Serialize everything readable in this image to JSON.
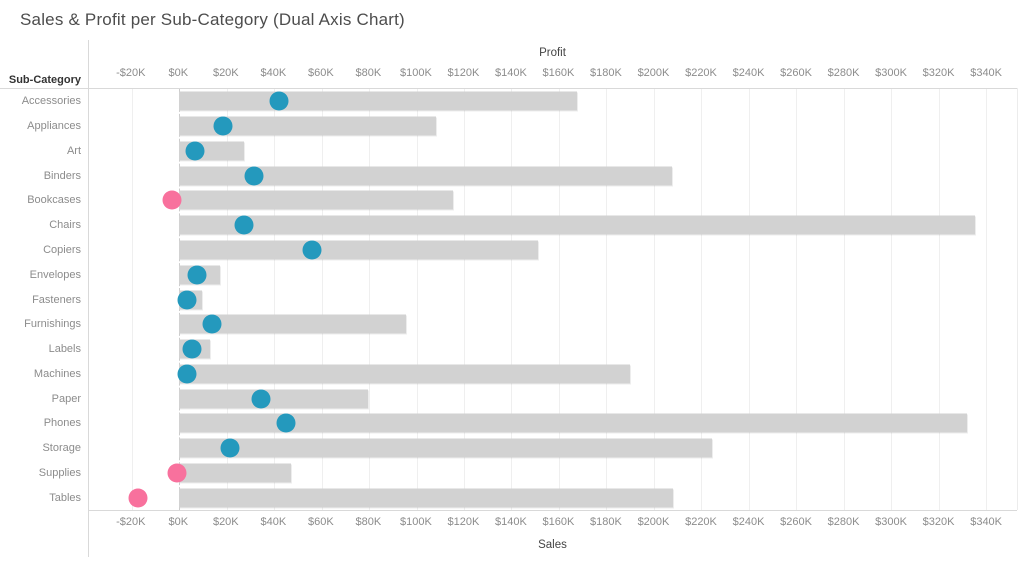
{
  "title": "Sales & Profit per Sub-Category (Dual Axis Chart)",
  "row_header": "Sub-Category",
  "colors": {
    "bar": "#d2d2d2",
    "profit_positive": "#2499bd",
    "profit_negative": "#f8719d",
    "gridline": "#efefef",
    "axis_text": "#8c8c8c"
  },
  "chart_data": {
    "type": "bar",
    "subtype": "dual-axis horizontal bars (Sales) with circle marks (Profit)",
    "title": "Sales & Profit per Sub-Category (Dual Axis Chart)",
    "row_axis_label": "Sub-Category",
    "top_axis_label": "Profit",
    "bottom_axis_label": "Sales",
    "units": "thousands of USD",
    "grid": true,
    "xlim": [
      -38,
      353
    ],
    "ticks": {
      "values": [
        -20,
        0,
        20,
        40,
        60,
        80,
        100,
        120,
        140,
        160,
        180,
        200,
        220,
        240,
        260,
        280,
        300,
        320,
        340
      ],
      "labels": [
        "-$20K",
        "$0K",
        "$20K",
        "$40K",
        "$60K",
        "$80K",
        "$100K",
        "$120K",
        "$140K",
        "$160K",
        "$180K",
        "$200K",
        "$220K",
        "$240K",
        "$260K",
        "$280K",
        "$300K",
        "$320K",
        "$340K"
      ]
    },
    "categories": [
      "Accessories",
      "Appliances",
      "Art",
      "Binders",
      "Bookcases",
      "Chairs",
      "Copiers",
      "Envelopes",
      "Fasteners",
      "Furnishings",
      "Labels",
      "Machines",
      "Paper",
      "Phones",
      "Storage",
      "Supplies",
      "Tables"
    ],
    "series": [
      {
        "name": "Sales",
        "mark": "bar",
        "values": [
          167.5,
          108,
          27.5,
          207.5,
          115.5,
          335.5,
          151,
          17,
          9.5,
          95.5,
          13,
          190,
          79.5,
          332,
          224.5,
          47,
          208
        ]
      },
      {
        "name": "Profit",
        "mark": "circle",
        "values": [
          42,
          18.5,
          6.5,
          31.5,
          -3,
          27.5,
          56,
          7.5,
          3.5,
          14,
          5.5,
          3.5,
          34.5,
          45,
          21.5,
          -1,
          -17.5
        ]
      }
    ]
  }
}
